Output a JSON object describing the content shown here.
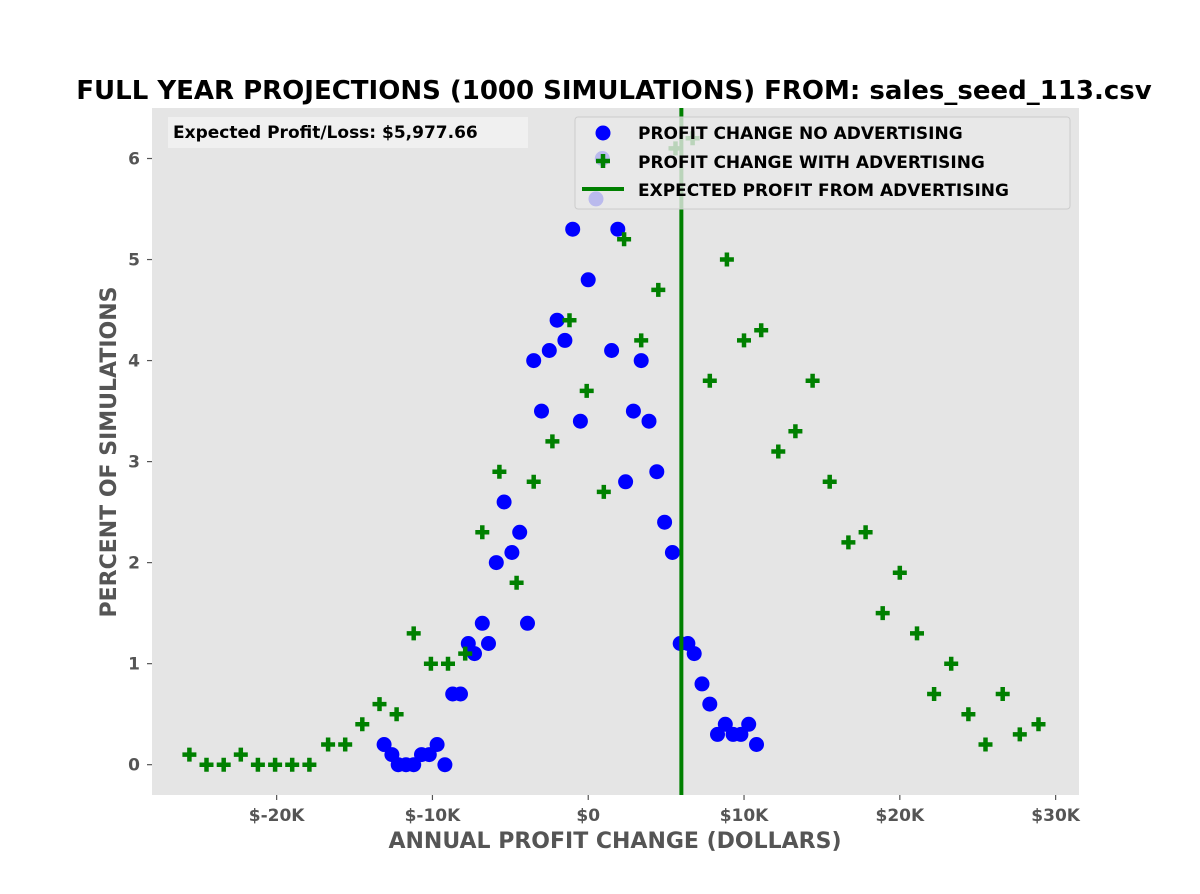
{
  "chart_data": {
    "type": "scatter",
    "title": "FULL YEAR PROJECTIONS (1000 SIMULATIONS)  FROM: sales_seed_113.csv",
    "xlabel": "ANNUAL PROFIT CHANGE (DOLLARS)",
    "ylabel": "PERCENT OF SIMULATIONS",
    "xlim": [
      -28000,
      31500
    ],
    "ylim": [
      -0.3,
      6.5
    ],
    "x_ticks": [
      -20000,
      -10000,
      0,
      10000,
      20000,
      30000
    ],
    "x_tick_labels": [
      "$-20K",
      "$-10K",
      "$0",
      "$10K",
      "$20K",
      "$30K"
    ],
    "y_ticks": [
      0,
      1,
      2,
      3,
      4,
      5,
      6
    ],
    "y_tick_labels": [
      "0",
      "1",
      "2",
      "3",
      "4",
      "5",
      "6"
    ],
    "grid": false,
    "legend_position": "upper-right",
    "annotation": "Expected Profit/Loss: $5,977.66",
    "vline": {
      "x": 5977.66,
      "label": "EXPECTED PROFIT FROM ADVERTISING",
      "color": "#008000"
    },
    "series": [
      {
        "name": "PROFIT CHANGE NO ADVERTISING",
        "marker": "circle",
        "color": "#0000ff",
        "points": [
          [
            -13100,
            0.2
          ],
          [
            -12600,
            0.1
          ],
          [
            -12200,
            0.0
          ],
          [
            -11700,
            0.0
          ],
          [
            -11200,
            0.0
          ],
          [
            -10700,
            0.1
          ],
          [
            -10200,
            0.1
          ],
          [
            -9700,
            0.2
          ],
          [
            -9200,
            0.0
          ],
          [
            -8700,
            0.7
          ],
          [
            -8200,
            0.7
          ],
          [
            -7700,
            1.2
          ],
          [
            -7300,
            1.1
          ],
          [
            -6800,
            1.4
          ],
          [
            -6400,
            1.2
          ],
          [
            -5900,
            2.0
          ],
          [
            -5400,
            2.6
          ],
          [
            -4900,
            2.1
          ],
          [
            -4400,
            2.3
          ],
          [
            -3900,
            1.4
          ],
          [
            -3500,
            4.0
          ],
          [
            -3000,
            3.5
          ],
          [
            -2500,
            4.1
          ],
          [
            -2000,
            4.4
          ],
          [
            -1500,
            4.2
          ],
          [
            -1000,
            5.3
          ],
          [
            -500,
            3.4
          ],
          [
            0,
            4.8
          ],
          [
            500,
            5.6
          ],
          [
            900,
            6.0
          ],
          [
            1500,
            4.1
          ],
          [
            1900,
            5.3
          ],
          [
            2400,
            2.8
          ],
          [
            2900,
            3.5
          ],
          [
            3400,
            4.0
          ],
          [
            3900,
            3.4
          ],
          [
            4400,
            2.9
          ],
          [
            4900,
            2.4
          ],
          [
            5400,
            2.1
          ],
          [
            5900,
            1.2
          ],
          [
            6400,
            1.2
          ],
          [
            6800,
            1.1
          ],
          [
            7300,
            0.8
          ],
          [
            7800,
            0.6
          ],
          [
            8300,
            0.3
          ],
          [
            8800,
            0.4
          ],
          [
            9300,
            0.3
          ],
          [
            9800,
            0.3
          ],
          [
            10300,
            0.4
          ],
          [
            10800,
            0.2
          ]
        ]
      },
      {
        "name": "PROFIT CHANGE WITH ADVERTISING",
        "marker": "plus",
        "color": "#008000",
        "points": [
          [
            -25600,
            0.1
          ],
          [
            -24500,
            0.0
          ],
          [
            -23400,
            0.0
          ],
          [
            -22300,
            0.1
          ],
          [
            -21200,
            0.0
          ],
          [
            -20100,
            0.0
          ],
          [
            -19000,
            0.0
          ],
          [
            -17900,
            0.0
          ],
          [
            -16700,
            0.2
          ],
          [
            -15600,
            0.2
          ],
          [
            -14500,
            0.4
          ],
          [
            -13400,
            0.6
          ],
          [
            -12300,
            0.5
          ],
          [
            -11200,
            1.3
          ],
          [
            -10100,
            1.0
          ],
          [
            -9000,
            1.0
          ],
          [
            -7900,
            1.1
          ],
          [
            -6800,
            2.3
          ],
          [
            -5700,
            2.9
          ],
          [
            -4600,
            1.8
          ],
          [
            -3500,
            2.8
          ],
          [
            -2300,
            3.2
          ],
          [
            -1200,
            4.4
          ],
          [
            -100,
            3.7
          ],
          [
            1000,
            2.7
          ],
          [
            2300,
            5.2
          ],
          [
            3400,
            4.2
          ],
          [
            4500,
            4.7
          ],
          [
            5600,
            6.1
          ],
          [
            6700,
            6.2
          ],
          [
            7800,
            3.8
          ],
          [
            8900,
            5.0
          ],
          [
            10000,
            4.2
          ],
          [
            11100,
            4.3
          ],
          [
            12200,
            3.1
          ],
          [
            13300,
            3.3
          ],
          [
            14400,
            3.8
          ],
          [
            15500,
            2.8
          ],
          [
            16700,
            2.2
          ],
          [
            17800,
            2.3
          ],
          [
            18900,
            1.5
          ],
          [
            20000,
            1.9
          ],
          [
            21100,
            1.3
          ],
          [
            22200,
            0.7
          ],
          [
            23300,
            1.0
          ],
          [
            24400,
            0.5
          ],
          [
            25500,
            0.2
          ],
          [
            26600,
            0.7
          ],
          [
            27700,
            0.3
          ],
          [
            28900,
            0.4
          ]
        ]
      }
    ]
  }
}
